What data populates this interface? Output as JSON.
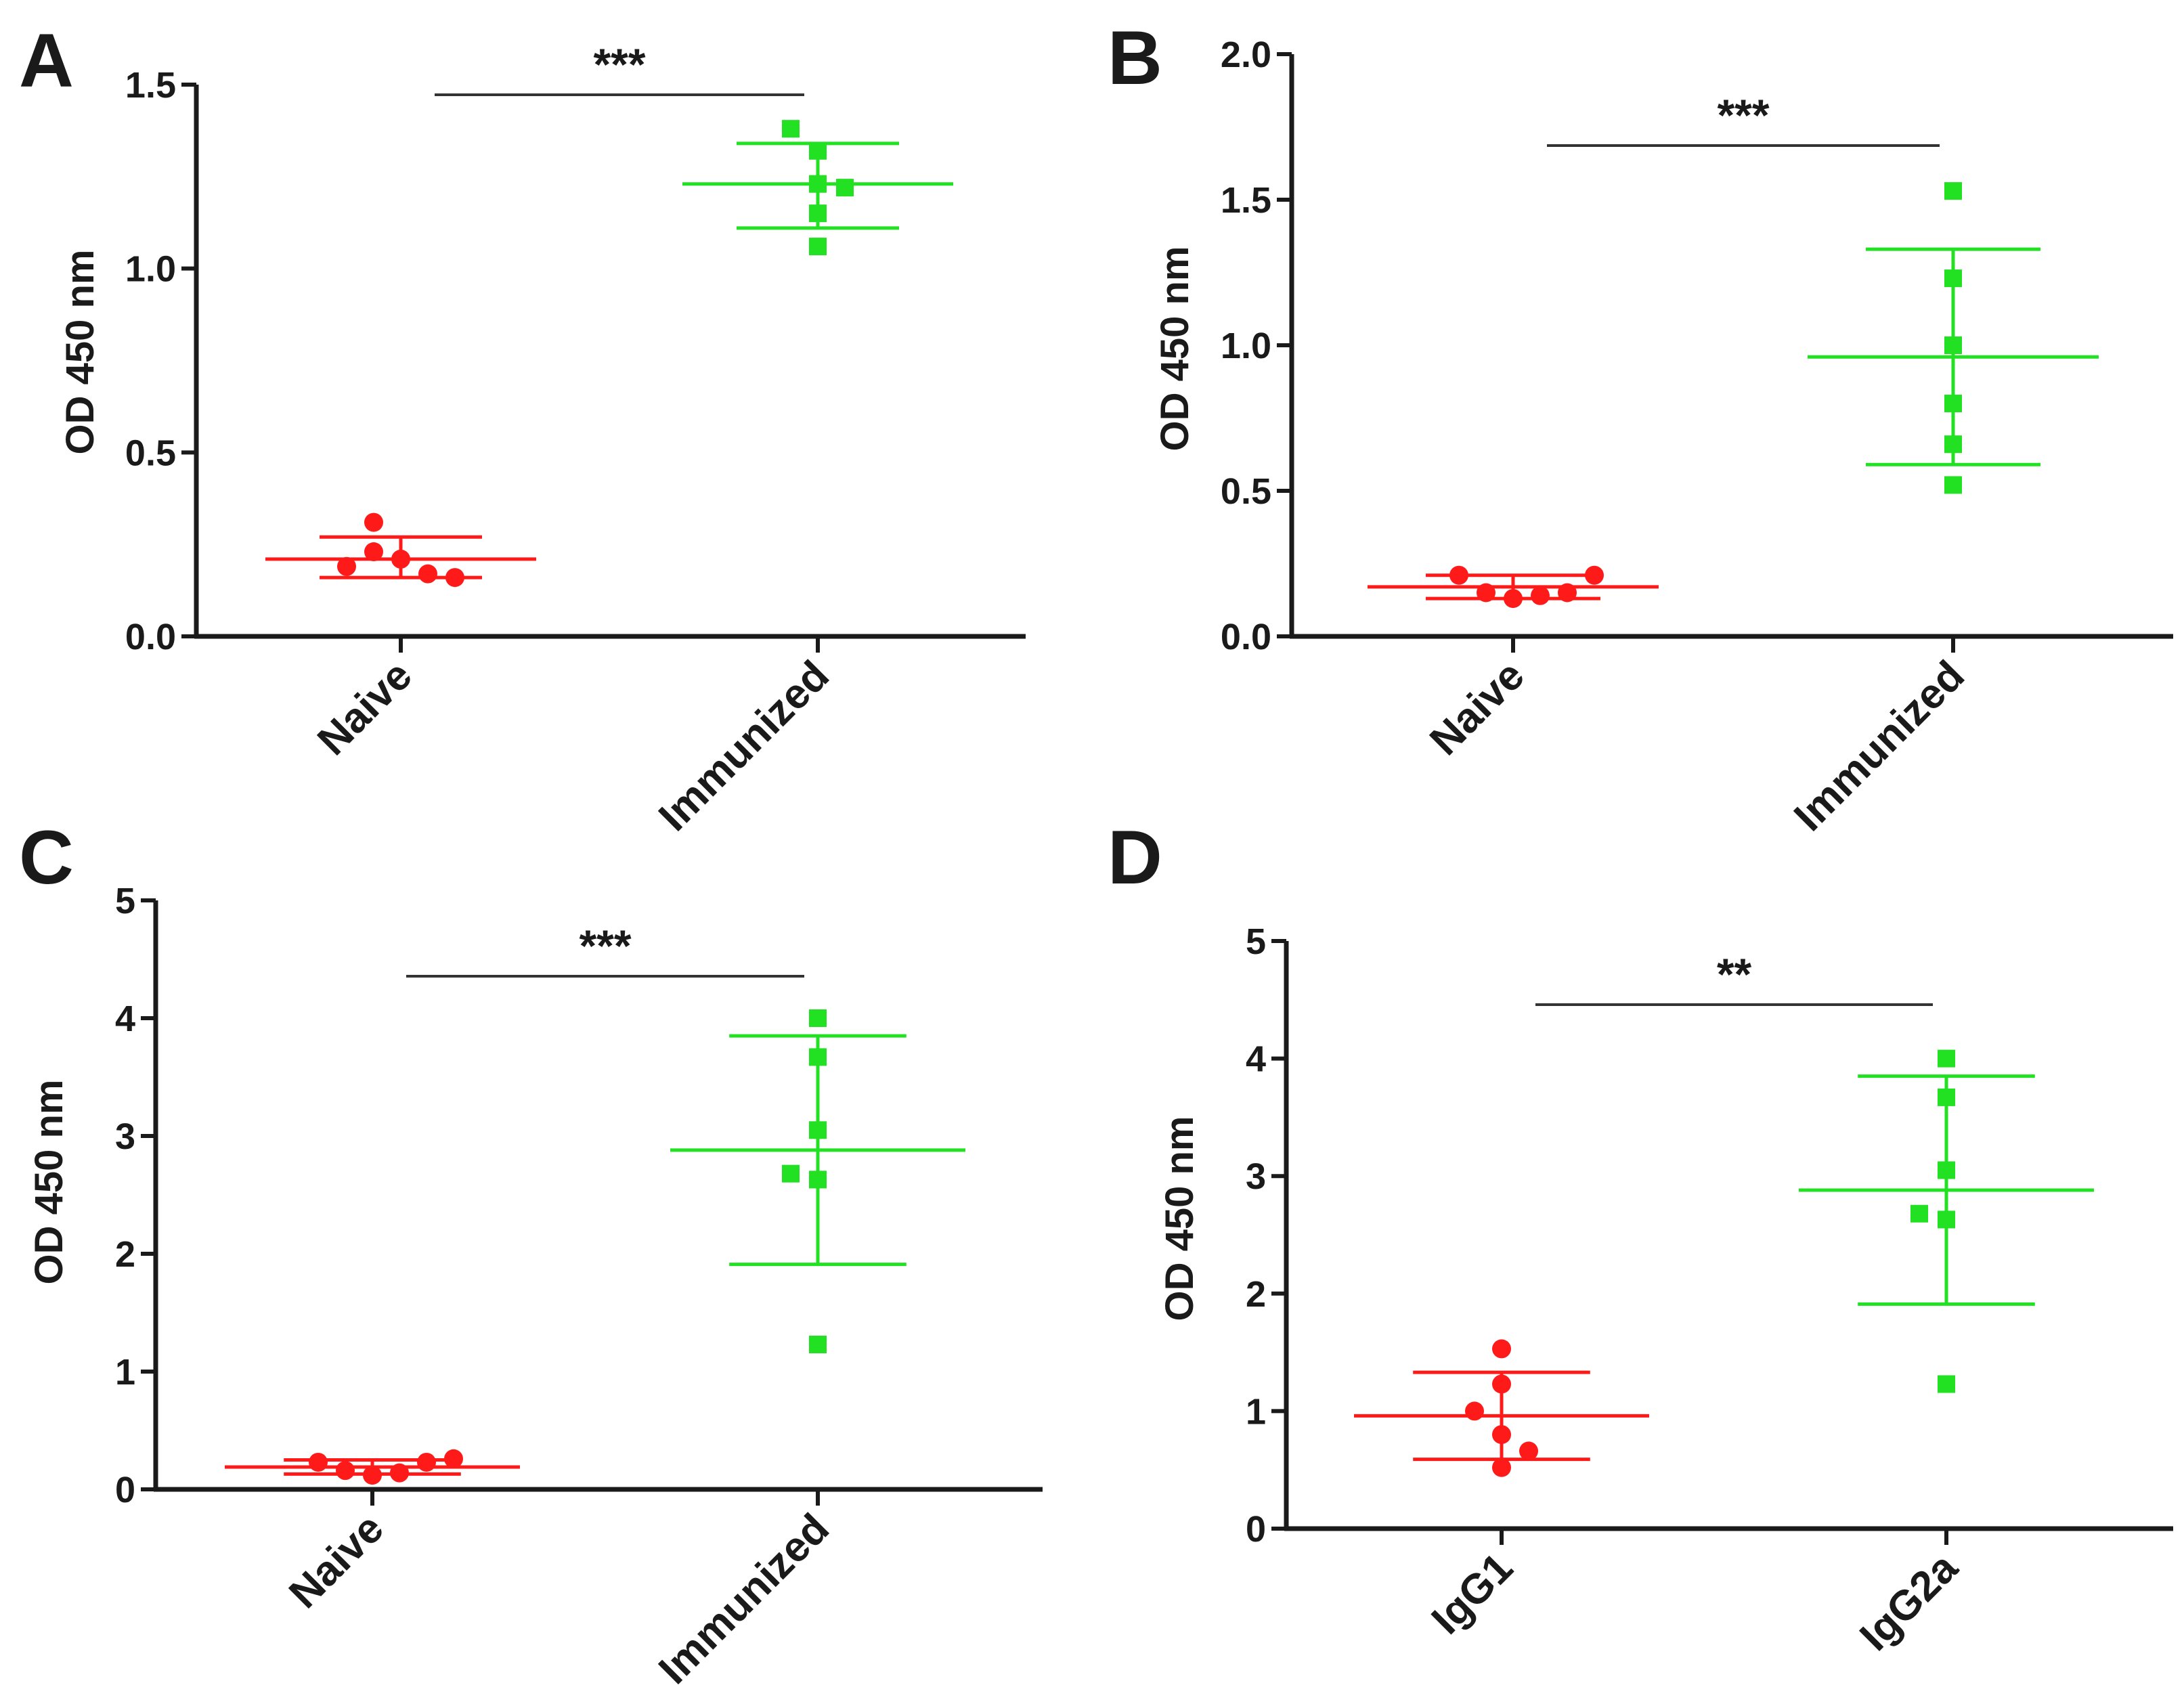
{
  "colors": {
    "naive": "#ff1a1a",
    "immunized": "#22e022",
    "axis": "#1a1a1a"
  },
  "chart_data": [
    {
      "panel": "A",
      "type": "scatter",
      "ylabel": "OD 450 nm",
      "ylim": [
        0,
        1.5
      ],
      "yticks": [
        "0.0",
        "0.5",
        "1.0",
        "1.5"
      ],
      "categories": [
        "Naive",
        "Immunized"
      ],
      "significance": "***",
      "series": [
        {
          "values": [
            0.31,
            0.23,
            0.19,
            0.21,
            0.17,
            0.16
          ],
          "mean": 0.21,
          "upper": 0.27,
          "lower": 0.16,
          "marker": "circle"
        },
        {
          "values": [
            1.38,
            1.32,
            1.23,
            1.22,
            1.15,
            1.06
          ],
          "mean": 1.23,
          "upper": 1.34,
          "lower": 1.11,
          "marker": "square"
        }
      ]
    },
    {
      "panel": "B",
      "type": "scatter",
      "ylabel": "OD 450 nm",
      "ylim": [
        0,
        2.0
      ],
      "yticks": [
        "0.0",
        "0.5",
        "1.0",
        "1.5",
        "2.0"
      ],
      "categories": [
        "Naive",
        "Immunized"
      ],
      "significance": "***",
      "series": [
        {
          "values": [
            0.21,
            0.15,
            0.13,
            0.14,
            0.15,
            0.21
          ],
          "mean": 0.17,
          "upper": 0.21,
          "lower": 0.13,
          "marker": "circle"
        },
        {
          "values": [
            1.53,
            1.23,
            1.0,
            0.8,
            0.66,
            0.52
          ],
          "mean": 0.96,
          "upper": 1.33,
          "lower": 0.59,
          "marker": "square"
        }
      ]
    },
    {
      "panel": "C",
      "type": "scatter",
      "ylabel": "OD 450 nm",
      "ylim": [
        0,
        5
      ],
      "yticks": [
        "0",
        "1",
        "2",
        "3",
        "4",
        "5"
      ],
      "categories": [
        "Naive",
        "Immunized"
      ],
      "significance": "***",
      "series": [
        {
          "values": [
            0.23,
            0.16,
            0.12,
            0.14,
            0.23,
            0.26
          ],
          "mean": 0.19,
          "upper": 0.25,
          "lower": 0.13,
          "marker": "circle"
        },
        {
          "values": [
            4.0,
            3.67,
            3.05,
            2.68,
            2.63,
            1.23
          ],
          "mean": 2.88,
          "upper": 3.85,
          "lower": 1.91,
          "marker": "square"
        }
      ]
    },
    {
      "panel": "D",
      "type": "scatter",
      "ylabel": "OD 450 nm",
      "ylim": [
        0,
        5
      ],
      "yticks": [
        "0",
        "1",
        "2",
        "3",
        "4",
        "5"
      ],
      "categories": [
        "IgG1",
        "IgG2a"
      ],
      "significance": "**",
      "series": [
        {
          "values": [
            1.53,
            1.23,
            1.0,
            0.8,
            0.66,
            0.52
          ],
          "mean": 0.96,
          "upper": 1.33,
          "lower": 0.59,
          "marker": "circle"
        },
        {
          "values": [
            4.0,
            3.67,
            3.05,
            2.68,
            2.63,
            1.23
          ],
          "mean": 2.88,
          "upper": 3.85,
          "lower": 1.91,
          "marker": "square"
        }
      ]
    }
  ]
}
